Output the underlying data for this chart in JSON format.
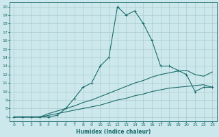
{
  "xlabel": "Humidex (Indice chaleur)",
  "xlim": [
    -0.5,
    23.5
  ],
  "ylim": [
    6.5,
    20.5
  ],
  "xticks": [
    0,
    1,
    2,
    3,
    4,
    5,
    6,
    7,
    8,
    9,
    10,
    11,
    12,
    13,
    14,
    15,
    16,
    17,
    18,
    19,
    20,
    21,
    22,
    23
  ],
  "yticks": [
    7,
    8,
    9,
    10,
    11,
    12,
    13,
    14,
    15,
    16,
    17,
    18,
    19,
    20
  ],
  "bg_color": "#cce8ec",
  "grid_color": "#aacccc",
  "line_color": "#1a6b6b",
  "line1_x": [
    0,
    1,
    2,
    3,
    4,
    5,
    6,
    7,
    8,
    9,
    10,
    11,
    12,
    13,
    14,
    15,
    16,
    17,
    18,
    19,
    20,
    21,
    22,
    23
  ],
  "line1_y": [
    7,
    7,
    7,
    7,
    7,
    7.2,
    8,
    9.2,
    10.5,
    11,
    13,
    14,
    20,
    19,
    19.5,
    18,
    16,
    13,
    13,
    12.5,
    12,
    10,
    10.5,
    10.5
  ],
  "line2_x": [
    0,
    1,
    2,
    3,
    4,
    5,
    6,
    7,
    8,
    9,
    10,
    11,
    12,
    13,
    14,
    15,
    16,
    17,
    18,
    19,
    20,
    21,
    22,
    23
  ],
  "line2_y": [
    7,
    7,
    7,
    7,
    7.2,
    7.4,
    7.6,
    7.8,
    8.0,
    8.2,
    8.4,
    8.7,
    9.0,
    9.2,
    9.5,
    9.7,
    10.0,
    10.2,
    10.4,
    10.5,
    10.6,
    10.7,
    10.8,
    10.5
  ],
  "line3_x": [
    0,
    1,
    2,
    3,
    4,
    5,
    6,
    7,
    8,
    9,
    10,
    11,
    12,
    13,
    14,
    15,
    16,
    17,
    18,
    19,
    20,
    21,
    22,
    23
  ],
  "line3_y": [
    7,
    7,
    7,
    7,
    7.4,
    7.7,
    8.0,
    8.3,
    8.7,
    9.0,
    9.4,
    9.8,
    10.2,
    10.6,
    11.0,
    11.3,
    11.7,
    12.0,
    12.2,
    12.4,
    12.5,
    12.0,
    11.8,
    12.3
  ]
}
